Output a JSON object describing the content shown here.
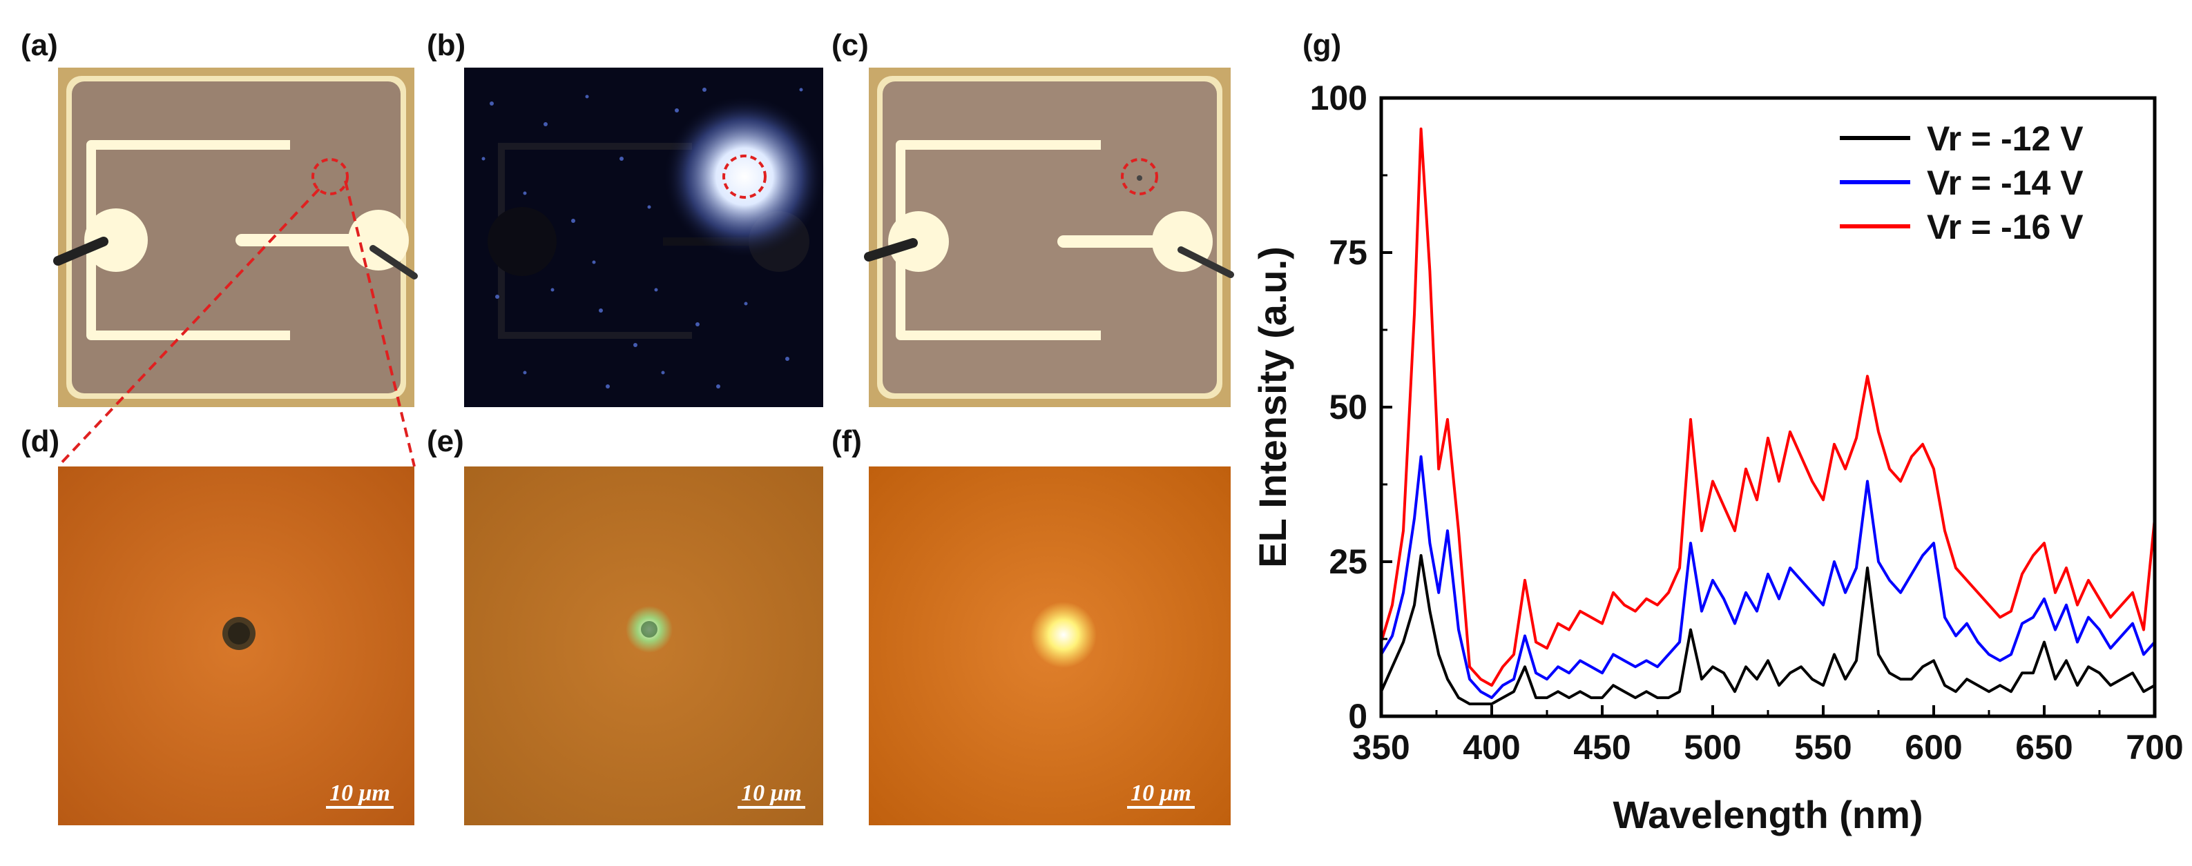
{
  "panels": {
    "a": {
      "label": "(a)"
    },
    "b": {
      "label": "(b)"
    },
    "c": {
      "label": "(c)"
    },
    "d": {
      "label": "(d)",
      "scalebar": "10 μm"
    },
    "e": {
      "label": "(e)",
      "scalebar": "10 μm"
    },
    "f": {
      "label": "(f)",
      "scalebar": "10 μm"
    },
    "g": {
      "label": "(g)"
    }
  },
  "colors": {
    "device_bg": "#9a8270",
    "device_frame": "#f3e6b8",
    "electrode": "#fff8d8",
    "dark_bg": "#06081a",
    "glow": "#d8e8ff",
    "orange": "#c8681e",
    "marker": "#e02020",
    "series_black": "#000000",
    "series_blue": "#0000ff",
    "series_red": "#ff0000"
  },
  "chart_data": {
    "type": "line",
    "title": "",
    "xlabel": "Wavelength (nm)",
    "ylabel": "EL Intensity (a.u.)",
    "xlim": [
      350,
      700
    ],
    "ylim": [
      0,
      100
    ],
    "xticks": [
      350,
      400,
      450,
      500,
      550,
      600,
      650,
      700
    ],
    "yticks": [
      0,
      25,
      50,
      75,
      100
    ],
    "legend_position": "top-right",
    "series": [
      {
        "name": "Vr = -12 V",
        "color": "#000000",
        "x": [
          350,
          355,
          360,
          365,
          368,
          372,
          376,
          380,
          385,
          390,
          395,
          400,
          405,
          410,
          415,
          420,
          425,
          430,
          435,
          440,
          445,
          450,
          455,
          460,
          465,
          470,
          475,
          480,
          485,
          490,
          495,
          500,
          505,
          510,
          515,
          520,
          525,
          530,
          535,
          540,
          545,
          550,
          555,
          560,
          565,
          570,
          575,
          580,
          585,
          590,
          595,
          600,
          605,
          610,
          615,
          620,
          625,
          630,
          635,
          640,
          645,
          650,
          655,
          660,
          665,
          670,
          675,
          680,
          685,
          690,
          695,
          700
        ],
        "values": [
          4,
          8,
          12,
          18,
          26,
          17,
          10,
          6,
          3,
          2,
          2,
          2,
          3,
          4,
          8,
          3,
          3,
          4,
          3,
          4,
          3,
          3,
          5,
          4,
          3,
          4,
          3,
          3,
          4,
          14,
          6,
          8,
          7,
          4,
          8,
          6,
          9,
          5,
          7,
          8,
          6,
          5,
          10,
          6,
          9,
          24,
          10,
          7,
          6,
          6,
          8,
          9,
          5,
          4,
          6,
          5,
          4,
          5,
          4,
          7,
          7,
          12,
          6,
          9,
          5,
          8,
          7,
          5,
          6,
          7,
          4,
          5
        ]
      },
      {
        "name": "Vr = -14 V",
        "color": "#0000ff",
        "x": [
          350,
          355,
          360,
          365,
          368,
          372,
          376,
          380,
          385,
          390,
          395,
          400,
          405,
          410,
          415,
          420,
          425,
          430,
          435,
          440,
          445,
          450,
          455,
          460,
          465,
          470,
          475,
          480,
          485,
          490,
          495,
          500,
          505,
          510,
          515,
          520,
          525,
          530,
          535,
          540,
          545,
          550,
          555,
          560,
          565,
          570,
          575,
          580,
          585,
          590,
          595,
          600,
          605,
          610,
          615,
          620,
          625,
          630,
          635,
          640,
          645,
          650,
          655,
          660,
          665,
          670,
          675,
          680,
          685,
          690,
          695,
          700
        ],
        "values": [
          10,
          13,
          20,
          32,
          42,
          28,
          20,
          30,
          14,
          6,
          4,
          3,
          5,
          6,
          13,
          7,
          6,
          8,
          7,
          9,
          8,
          7,
          10,
          9,
          8,
          9,
          8,
          10,
          12,
          28,
          17,
          22,
          19,
          15,
          20,
          17,
          23,
          19,
          24,
          22,
          20,
          18,
          25,
          20,
          24,
          38,
          25,
          22,
          20,
          23,
          26,
          28,
          16,
          13,
          15,
          12,
          10,
          9,
          10,
          15,
          16,
          19,
          14,
          18,
          12,
          16,
          14,
          11,
          13,
          15,
          10,
          12
        ]
      },
      {
        "name": "Vr = -16 V",
        "color": "#ff0000",
        "x": [
          350,
          355,
          360,
          365,
          368,
          372,
          376,
          380,
          385,
          390,
          395,
          400,
          405,
          410,
          415,
          420,
          425,
          430,
          435,
          440,
          445,
          450,
          455,
          460,
          465,
          470,
          475,
          480,
          485,
          490,
          495,
          500,
          505,
          510,
          515,
          520,
          525,
          530,
          535,
          540,
          545,
          550,
          555,
          560,
          565,
          570,
          575,
          580,
          585,
          590,
          595,
          600,
          605,
          610,
          615,
          620,
          625,
          630,
          635,
          640,
          645,
          650,
          655,
          660,
          665,
          670,
          675,
          680,
          685,
          690,
          695,
          700
        ],
        "values": [
          12,
          18,
          30,
          65,
          95,
          72,
          40,
          48,
          30,
          8,
          6,
          5,
          8,
          10,
          22,
          12,
          11,
          15,
          14,
          17,
          16,
          15,
          20,
          18,
          17,
          19,
          18,
          20,
          24,
          48,
          30,
          38,
          34,
          30,
          40,
          35,
          45,
          38,
          46,
          42,
          38,
          35,
          44,
          40,
          45,
          55,
          46,
          40,
          38,
          42,
          44,
          40,
          30,
          24,
          22,
          20,
          18,
          16,
          17,
          23,
          26,
          28,
          20,
          24,
          18,
          22,
          19,
          16,
          18,
          20,
          14,
          32
        ]
      }
    ]
  }
}
